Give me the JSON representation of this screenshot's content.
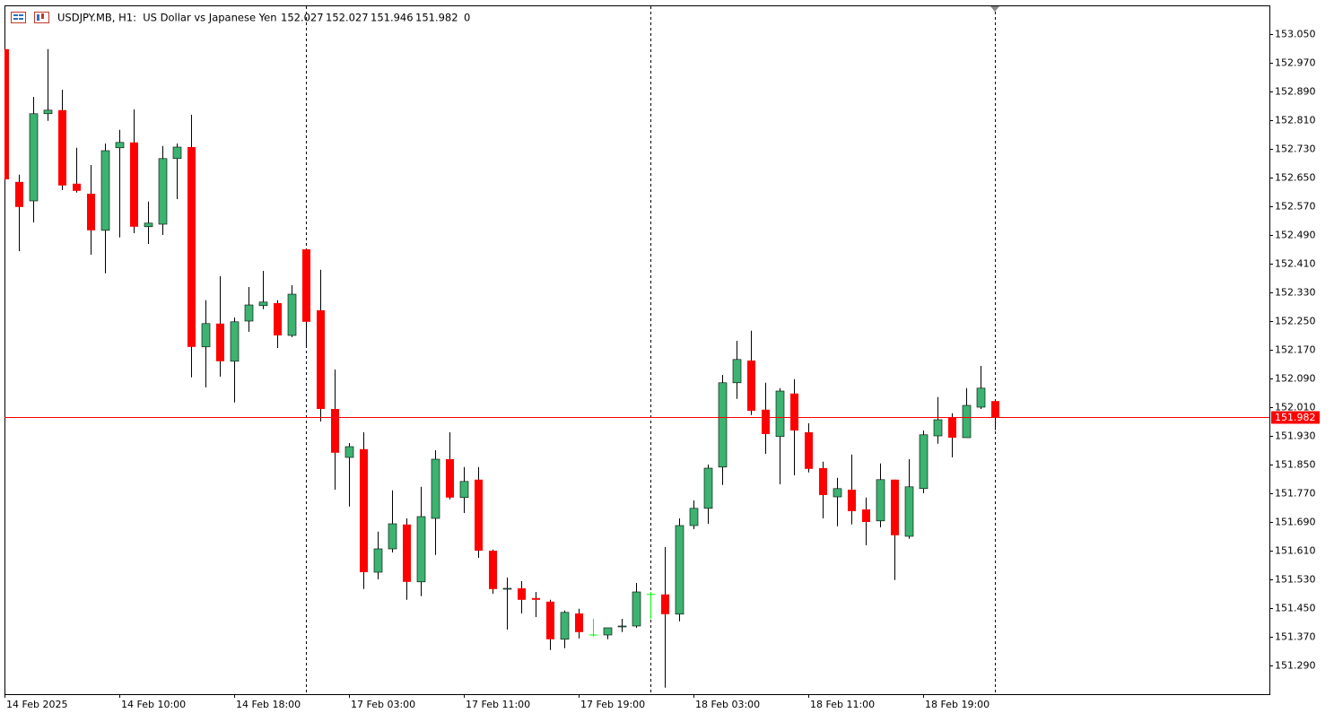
{
  "chart_data": {
    "type": "candlestick",
    "title": "USDJPY.MB, H1:  US Dollar vs Japanese Yen",
    "info_value": 0,
    "categories": [
      "14 Feb 2025",
      null,
      null,
      null,
      null,
      null,
      null,
      null,
      "14 Feb 10:00",
      null,
      null,
      null,
      null,
      null,
      null,
      null,
      "14 Feb 18:00",
      null,
      null,
      null,
      null,
      null,
      null,
      null,
      "17 Feb 03:00",
      null,
      null,
      null,
      null,
      null,
      null,
      null,
      "17 Feb 11:00",
      null,
      null,
      null,
      null,
      null,
      null,
      null,
      "17 Feb 19:00",
      null,
      null,
      null,
      null,
      null,
      null,
      null,
      "18 Feb 03:00",
      null,
      null,
      null,
      null,
      null,
      null,
      null,
      "18 Feb 11:00",
      null,
      null,
      null,
      null,
      null,
      null,
      null,
      "18 Feb 19:00",
      null,
      null,
      null,
      null,
      null
    ],
    "open": [
      153.008,
      152.638,
      152.585,
      152.828,
      152.838,
      152.633,
      152.605,
      152.503,
      152.733,
      152.748,
      152.513,
      152.52,
      152.703,
      152.735,
      152.178,
      152.243,
      152.138,
      152.25,
      152.293,
      152.3,
      152.21,
      152.45,
      152.28,
      152.005,
      151.87,
      151.893,
      151.55,
      151.615,
      151.683,
      151.523,
      151.7,
      151.865,
      151.758,
      151.808,
      151.61,
      151.503,
      151.505,
      151.478,
      151.468,
      151.363,
      151.435,
      151.375,
      151.375,
      151.398,
      151.4,
      151.488,
      151.488,
      151.433,
      151.68,
      151.728,
      151.843,
      152.078,
      152.14,
      152.003,
      151.928,
      152.048,
      151.94,
      151.84,
      151.76,
      151.78,
      151.725,
      151.693,
      151.808,
      151.65,
      151.783,
      151.93,
      151.98,
      151.925,
      152.01,
      152.027
    ],
    "high": [
      153.01,
      152.658,
      152.875,
      153.008,
      152.895,
      152.733,
      152.685,
      152.745,
      152.783,
      152.84,
      152.583,
      152.738,
      152.745,
      152.825,
      152.308,
      152.375,
      152.26,
      152.345,
      152.39,
      152.308,
      152.35,
      152.45,
      152.393,
      152.115,
      151.91,
      151.94,
      151.663,
      151.778,
      151.7,
      151.788,
      151.89,
      151.94,
      151.843,
      151.843,
      151.613,
      151.535,
      151.525,
      151.495,
      151.473,
      151.443,
      151.448,
      151.42,
      151.395,
      151.42,
      151.52,
      151.495,
      151.62,
      151.7,
      151.75,
      151.85,
      152.1,
      152.195,
      152.223,
      152.078,
      152.063,
      152.088,
      151.965,
      151.858,
      151.813,
      151.878,
      151.758,
      151.853,
      151.808,
      151.865,
      151.945,
      152.038,
      151.993,
      152.063,
      152.125,
      152.027
    ],
    "low": [
      152.64,
      152.445,
      152.525,
      152.808,
      152.615,
      152.608,
      152.435,
      152.383,
      152.483,
      152.495,
      152.465,
      152.49,
      152.59,
      152.093,
      152.065,
      152.095,
      152.023,
      152.22,
      152.283,
      152.175,
      152.205,
      152.18,
      151.97,
      151.78,
      151.733,
      151.503,
      151.53,
      151.605,
      151.473,
      151.483,
      151.598,
      151.753,
      151.715,
      151.59,
      151.49,
      151.39,
      151.435,
      151.425,
      151.333,
      151.338,
      151.365,
      151.37,
      151.363,
      151.383,
      151.395,
      151.42,
      151.228,
      151.413,
      151.67,
      151.685,
      151.793,
      152.033,
      151.988,
      151.88,
      151.795,
      151.82,
      151.828,
      151.7,
      151.678,
      151.683,
      151.625,
      151.675,
      151.528,
      151.643,
      151.77,
      151.908,
      151.87,
      151.925,
      152.005,
      151.946
    ],
    "close": [
      152.645,
      152.568,
      152.828,
      152.838,
      152.628,
      152.613,
      152.503,
      152.725,
      152.748,
      152.513,
      152.523,
      152.703,
      152.735,
      152.178,
      152.243,
      152.138,
      152.248,
      152.295,
      152.303,
      152.21,
      152.325,
      152.248,
      152.005,
      151.883,
      151.9,
      151.55,
      151.615,
      151.685,
      151.523,
      151.705,
      151.865,
      151.758,
      151.803,
      151.61,
      151.503,
      151.505,
      151.473,
      151.473,
      151.363,
      151.438,
      151.383,
      151.375,
      151.395,
      151.4,
      151.495,
      151.488,
      151.433,
      151.68,
      151.728,
      151.84,
      152.078,
      152.143,
      152.0,
      151.935,
      152.055,
      151.945,
      151.838,
      151.765,
      151.783,
      151.72,
      151.69,
      151.808,
      151.653,
      151.788,
      151.933,
      151.975,
      151.925,
      152.015,
      152.063,
      151.982
    ],
    "up_color": "#3cb371",
    "down_color": "#ff0000",
    "doji_color": "#00ff00",
    "price_line_color": "#ff0000",
    "ylim": [
      151.21,
      153.13
    ],
    "yticks": [
      {
        "value": 153.05,
        "label": "153.050"
      },
      {
        "value": 152.97,
        "label": "152.970"
      },
      {
        "value": 152.89,
        "label": "152.890"
      },
      {
        "value": 152.81,
        "label": "152.810"
      },
      {
        "value": 152.73,
        "label": "152.730"
      },
      {
        "value": 152.65,
        "label": "152.650"
      },
      {
        "value": 152.57,
        "label": "152.570"
      },
      {
        "value": 152.49,
        "label": "152.490"
      },
      {
        "value": 152.41,
        "label": "152.410"
      },
      {
        "value": 152.33,
        "label": "152.330"
      },
      {
        "value": 152.25,
        "label": "152.250"
      },
      {
        "value": 152.17,
        "label": "152.170"
      },
      {
        "value": 152.09,
        "label": "152.090"
      },
      {
        "value": 152.01,
        "label": "152.010"
      },
      {
        "value": 151.93,
        "label": "151.930"
      },
      {
        "value": 151.85,
        "label": "151.850"
      },
      {
        "value": 151.77,
        "label": "151.770"
      },
      {
        "value": 151.69,
        "label": "151.690"
      },
      {
        "value": 151.61,
        "label": "151.610"
      },
      {
        "value": 151.53,
        "label": "151.530"
      },
      {
        "value": 151.45,
        "label": "151.450"
      },
      {
        "value": 151.37,
        "label": "151.370"
      },
      {
        "value": 151.29,
        "label": "151.290"
      }
    ],
    "grid": false
  }
}
